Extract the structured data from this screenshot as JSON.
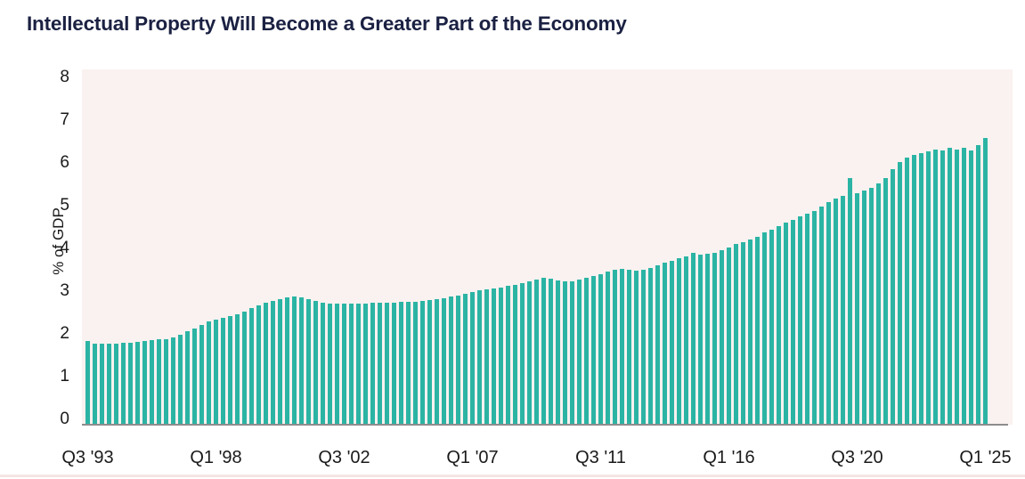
{
  "page": {
    "title": "Intellectual Property Will Become a Greater Part of the Economy"
  },
  "colors": {
    "title": "#1b2142",
    "bar": "#2bb4a4",
    "plot_background": "#faf2f0",
    "baseline": "#8d8d8d",
    "bottom_divider": "#f4e5e3",
    "tick_text": "#1a1a1a"
  },
  "chart_data": {
    "type": "bar",
    "title": "Intellectual Property Will Become a Greater Part of the Economy",
    "xlabel": "",
    "ylabel": "% of GDP",
    "ylim": [
      0,
      8
    ],
    "yticks": [
      0,
      1,
      2,
      3,
      4,
      5,
      6,
      7,
      8
    ],
    "grid": false,
    "legend": false,
    "frequency": "quarterly",
    "x_range": "Q3 1993 to Q1 2025",
    "xticks": [
      {
        "index": 0,
        "label": "Q3 '93"
      },
      {
        "index": 18,
        "label": "Q1 '98"
      },
      {
        "index": 36,
        "label": "Q3 '02"
      },
      {
        "index": 54,
        "label": "Q1 '07"
      },
      {
        "index": 72,
        "label": "Q3 '11"
      },
      {
        "index": 90,
        "label": "Q1 '16"
      },
      {
        "index": 108,
        "label": "Q3 '20"
      },
      {
        "index": 126,
        "label": "Q1 '25"
      }
    ],
    "values": [
      1.95,
      1.9,
      1.89,
      1.89,
      1.9,
      1.92,
      1.92,
      1.94,
      1.95,
      1.97,
      1.99,
      2.01,
      2.04,
      2.1,
      2.18,
      2.26,
      2.34,
      2.41,
      2.46,
      2.5,
      2.55,
      2.58,
      2.65,
      2.72,
      2.79,
      2.85,
      2.9,
      2.93,
      2.97,
      3.0,
      2.98,
      2.94,
      2.9,
      2.86,
      2.84,
      2.83,
      2.83,
      2.83,
      2.84,
      2.84,
      2.85,
      2.85,
      2.86,
      2.86,
      2.87,
      2.88,
      2.88,
      2.89,
      2.91,
      2.93,
      2.96,
      3.0,
      3.03,
      3.07,
      3.1,
      3.14,
      3.17,
      3.19,
      3.21,
      3.24,
      3.28,
      3.32,
      3.35,
      3.4,
      3.44,
      3.42,
      3.38,
      3.36,
      3.36,
      3.39,
      3.43,
      3.47,
      3.52,
      3.58,
      3.62,
      3.65,
      3.63,
      3.61,
      3.63,
      3.67,
      3.73,
      3.79,
      3.84,
      3.89,
      3.94,
      4.02,
      3.97,
      4.0,
      4.03,
      4.08,
      4.15,
      4.22,
      4.28,
      4.33,
      4.4,
      4.5,
      4.57,
      4.64,
      4.72,
      4.8,
      4.88,
      4.93,
      5.0,
      5.1,
      5.2,
      5.3,
      5.35,
      5.78,
      5.42,
      5.48,
      5.55,
      5.65,
      5.78,
      5.97,
      6.15,
      6.25,
      6.31,
      6.36,
      6.39,
      6.44,
      6.42,
      6.47,
      6.44,
      6.48,
      6.42,
      6.55,
      6.7
    ]
  }
}
